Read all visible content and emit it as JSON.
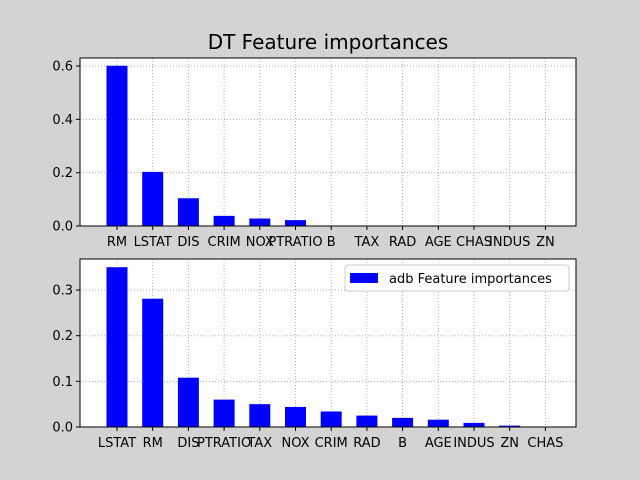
{
  "figure": {
    "title": "DT Feature importances",
    "background": "#d3d3d3"
  },
  "chart_data": [
    {
      "type": "bar",
      "categories": [
        "RM",
        "LSTAT",
        "DIS",
        "CRIM",
        "NOX",
        "PTRATIO",
        "B",
        "TAX",
        "RAD",
        "AGE",
        "CHAS",
        "INDUS",
        "ZN"
      ],
      "values": [
        0.601,
        0.203,
        0.104,
        0.038,
        0.028,
        0.022,
        0,
        0,
        0,
        0,
        0,
        0,
        0
      ],
      "yticks": [
        "0.0",
        "0.2",
        "0.4",
        "0.6"
      ],
      "ylim": [
        0,
        0.63
      ],
      "grid": true,
      "bar_color": "#0000ff"
    },
    {
      "type": "bar",
      "categories": [
        "LSTAT",
        "RM",
        "DIS",
        "PTRATIO",
        "TAX",
        "NOX",
        "CRIM",
        "RAD",
        "B",
        "AGE",
        "INDUS",
        "ZN",
        "CHAS"
      ],
      "series": [
        {
          "name": "adb Feature importances",
          "values": [
            0.35,
            0.281,
            0.108,
            0.06,
            0.05,
            0.044,
            0.034,
            0.025,
            0.02,
            0.016,
            0.009,
            0.003,
            0
          ]
        }
      ],
      "yticks": [
        "0.0",
        "0.1",
        "0.2",
        "0.3"
      ],
      "ylim": [
        0,
        0.368
      ],
      "grid": true,
      "legend": "top-right",
      "bar_color": "#0000ff"
    }
  ]
}
